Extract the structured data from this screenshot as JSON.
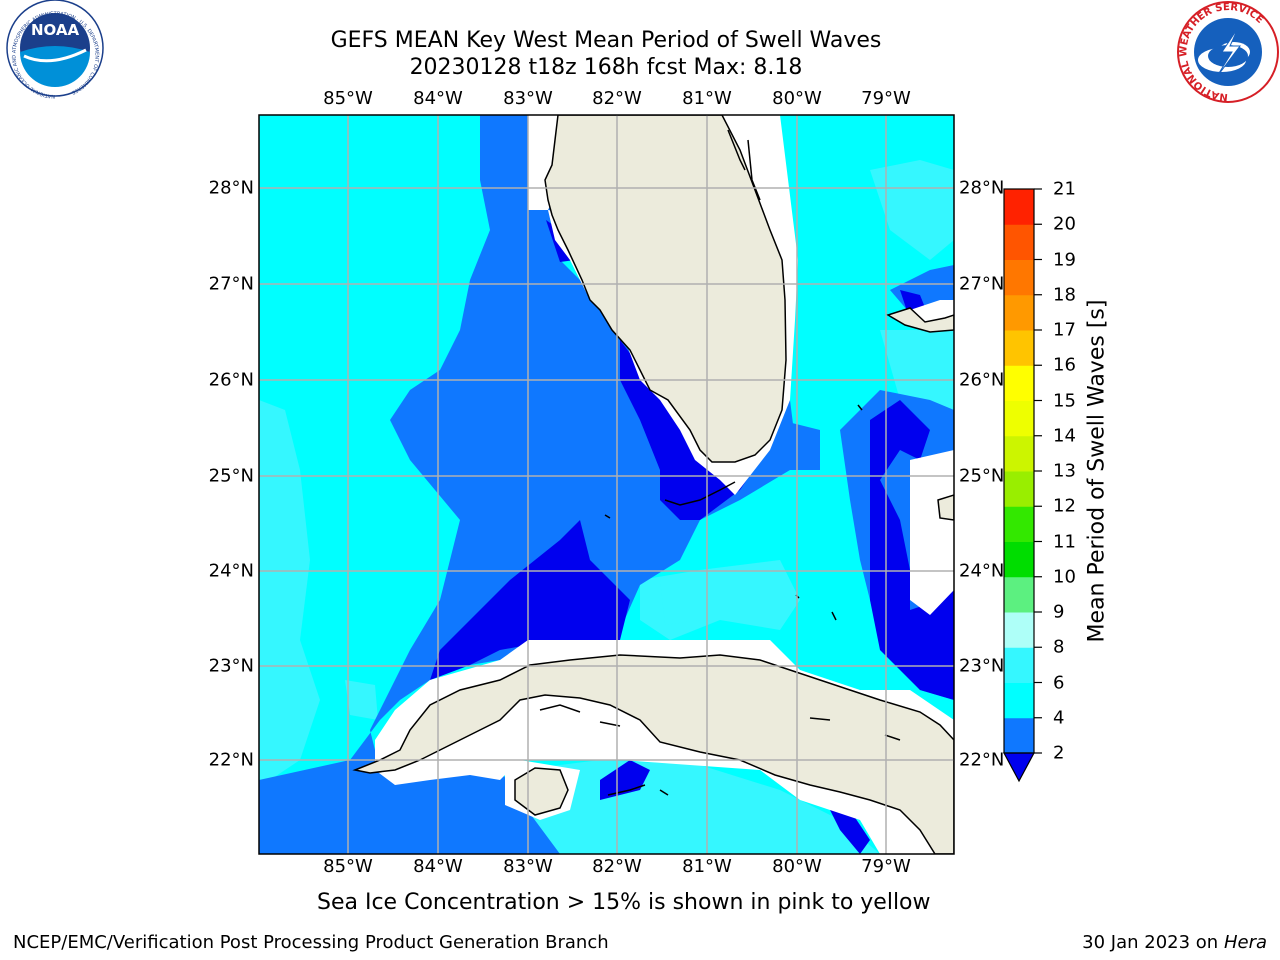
{
  "title": {
    "line1": "GEFS MEAN Key West Mean Period of Swell Waves",
    "line2": "20230128 t18z 168h fcst   Max: 8.18"
  },
  "map": {
    "lon_labels": [
      "85°W",
      "84°W",
      "83°W",
      "82°W",
      "81°W",
      "80°W",
      "79°W"
    ],
    "lat_labels": [
      "28°N",
      "27°N",
      "26°N",
      "25°N",
      "24°N",
      "23°N",
      "22°N"
    ],
    "colors": {
      "land": "#ecebdc",
      "no_data": "#ffffff",
      "grid": "#b0b0b0",
      "coast": "#000000"
    }
  },
  "colorbar": {
    "label": "Mean Period of Swell Waves [s]",
    "ticks": [
      "21",
      "20",
      "19",
      "18",
      "17",
      "16",
      "15",
      "14",
      "13",
      "12",
      "11",
      "10",
      "9",
      "8",
      "6",
      "4",
      "2"
    ],
    "bins": [
      {
        "from": 2,
        "to": 4,
        "color": "#0f78ff"
      },
      {
        "from": 4,
        "to": 6,
        "color": "#00ffff"
      },
      {
        "from": 6,
        "to": 8,
        "color": "#35f7ff"
      },
      {
        "from": 8,
        "to": 9,
        "color": "#aefff8"
      },
      {
        "from": 9,
        "to": 10,
        "color": "#5cf080"
      },
      {
        "from": 10,
        "to": 11,
        "color": "#00dd00"
      },
      {
        "from": 11,
        "to": 12,
        "color": "#33e800"
      },
      {
        "from": 12,
        "to": 13,
        "color": "#99ee00"
      },
      {
        "from": 13,
        "to": 14,
        "color": "#ccf500"
      },
      {
        "from": 14,
        "to": 15,
        "color": "#eeff00"
      },
      {
        "from": 15,
        "to": 16,
        "color": "#ffff00"
      },
      {
        "from": 16,
        "to": 17,
        "color": "#ffc400"
      },
      {
        "from": 17,
        "to": 18,
        "color": "#ff9900"
      },
      {
        "from": 18,
        "to": 19,
        "color": "#ff7700"
      },
      {
        "from": 19,
        "to": 20,
        "color": "#ff5500"
      },
      {
        "from": 20,
        "to": 21,
        "color": "#ff2200"
      }
    ],
    "under_color": "#0000ee"
  },
  "note": "Sea Ice Concentration > 15% is shown in pink to yellow",
  "footer": {
    "left": "NCEP/EMC/Verification Post Processing Product Generation Branch",
    "date": "30 Jan 2023 on",
    "machine": "Hera"
  },
  "logos": {
    "noaa_text": "NOAA",
    "noaa_ring": "NATIONAL OCEANIC AND ATMOSPHERIC ADMINISTRATION · U.S. DEPARTMENT OF COMMERCE",
    "nws_ring": "NATIONAL WEATHER SERVICE"
  }
}
